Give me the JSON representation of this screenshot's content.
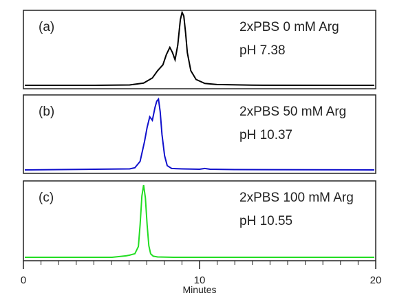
{
  "chart_data": [
    {
      "type": "line",
      "panel_label": "(a)",
      "annotation": [
        "2xPBS 0 mM Arg",
        "pH 7.38"
      ],
      "color": "#000000",
      "x": [
        0,
        4,
        6,
        6.8,
        7.3,
        7.6,
        7.9,
        8.1,
        8.3,
        8.45,
        8.6,
        8.75,
        8.9,
        9.0,
        9.1,
        9.2,
        9.3,
        9.5,
        9.8,
        10.3,
        11,
        13,
        20
      ],
      "y": [
        0,
        0,
        0.005,
        0.03,
        0.1,
        0.2,
        0.28,
        0.42,
        0.52,
        0.45,
        0.35,
        0.55,
        0.9,
        1.0,
        0.95,
        0.72,
        0.45,
        0.2,
        0.08,
        0.025,
        0.01,
        0.002,
        0
      ]
    },
    {
      "type": "line",
      "panel_label": "(b)",
      "annotation": [
        "2xPBS 50 mM Arg",
        "pH 10.37"
      ],
      "color": "#1010cc",
      "x": [
        0,
        4,
        6,
        6.3,
        6.6,
        6.85,
        7.0,
        7.15,
        7.3,
        7.45,
        7.55,
        7.65,
        7.75,
        7.85,
        8.0,
        8.15,
        8.4,
        9.0,
        10.0,
        10.3,
        10.6,
        12,
        20
      ],
      "y": [
        0,
        0.01,
        0.015,
        0.03,
        0.12,
        0.4,
        0.6,
        0.75,
        0.7,
        0.88,
        0.97,
        1.0,
        0.82,
        0.5,
        0.2,
        0.06,
        0.02,
        0.015,
        0.01,
        0.02,
        0.01,
        0.005,
        0
      ]
    },
    {
      "type": "line",
      "panel_label": "(c)",
      "annotation": [
        "2xPBS 100 mM Arg",
        "pH 10.55"
      ],
      "color": "#22dd22",
      "x": [
        0,
        5,
        5.8,
        6.0,
        6.3,
        6.5,
        6.6,
        6.7,
        6.8,
        6.9,
        7.0,
        7.1,
        7.2,
        7.35,
        7.6,
        8.5,
        20
      ],
      "y": [
        0,
        0,
        0.02,
        0.03,
        0.05,
        0.15,
        0.45,
        0.85,
        1.0,
        0.82,
        0.45,
        0.16,
        0.05,
        0.015,
        0.005,
        0,
        0
      ]
    }
  ],
  "x_axis": {
    "label": "Minutes",
    "ticks": [
      "0",
      "10",
      "20"
    ],
    "xlim": [
      0,
      20
    ]
  }
}
